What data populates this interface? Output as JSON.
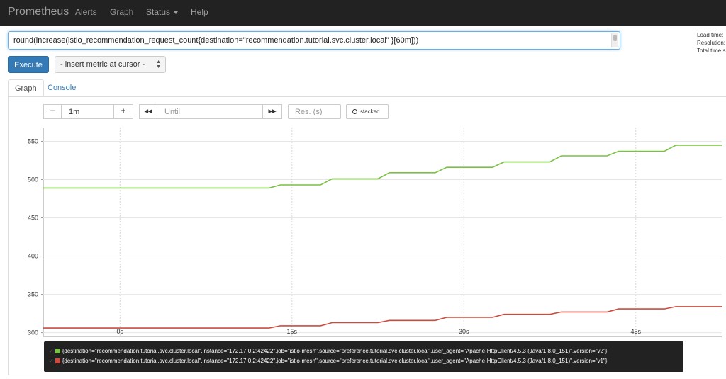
{
  "navbar": {
    "brand": "Prometheus",
    "items": [
      "Alerts",
      "Graph",
      "Status",
      "Help"
    ]
  },
  "expression": {
    "value": "round(increase(istio_recommendation_request_count{destination=\"recommendation.tutorial.svc.cluster.local\" }[60m]))"
  },
  "stats": [
    "Load time:",
    "Resolution:",
    "Total time s"
  ],
  "execute_label": "Execute",
  "metric_select": "- insert metric at cursor -",
  "tabs": [
    "Graph",
    "Console"
  ],
  "controls": {
    "minus": "−",
    "range": "1m",
    "plus": "+",
    "back": "◀◀",
    "until_placeholder": "Until",
    "forward": "▶▶",
    "res_placeholder": "Res. (s)",
    "stacked": "stacked"
  },
  "colors": {
    "navbar": "#222222",
    "execute": "#337ab7",
    "series_v2": "#7ac143",
    "series_v1": "#cb4b3f"
  },
  "chart_data": {
    "type": "line",
    "y_ticks": [
      300,
      350,
      400,
      450,
      500,
      550
    ],
    "x_ticks": [
      "0s",
      "15s",
      "30s",
      "45s"
    ],
    "x_range_seconds": [
      -6.7,
      52.5
    ],
    "ylim": [
      295,
      568
    ],
    "grid": true,
    "series": [
      {
        "name": "{destination=\"recommendation.tutorial.svc.cluster.local\",instance=\"172.17.0.2:42422\",job=\"istio-mesh\",source=\"preference.tutorial.svc.cluster.local\",user_agent=\"Apache-HttpClient/4.5.3 (Java/1.8.0_151)\",version=\"v2\"}",
        "color": "#7ac143",
        "points": [
          [
            -6.7,
            489
          ],
          [
            13,
            489
          ],
          [
            14,
            493
          ],
          [
            17.5,
            493
          ],
          [
            18.5,
            501
          ],
          [
            22.5,
            501
          ],
          [
            23.5,
            509
          ],
          [
            27.5,
            509
          ],
          [
            28.5,
            516
          ],
          [
            32.5,
            516
          ],
          [
            33.5,
            523
          ],
          [
            37.5,
            523
          ],
          [
            38.5,
            531
          ],
          [
            42.5,
            531
          ],
          [
            43.5,
            537
          ],
          [
            47.5,
            537
          ],
          [
            48.5,
            545
          ],
          [
            52.5,
            545
          ]
        ]
      },
      {
        "name": "{destination=\"recommendation.tutorial.svc.cluster.local\",instance=\"172.17.0.2:42422\",job=\"istio-mesh\",source=\"preference.tutorial.svc.cluster.local\",user_agent=\"Apache-HttpClient/4.5.3 (Java/1.8.0_151)\",version=\"v1\"}",
        "color": "#cb4b3f",
        "points": [
          [
            -6.7,
            306
          ],
          [
            13,
            306
          ],
          [
            14,
            309
          ],
          [
            17.5,
            309
          ],
          [
            18.5,
            313
          ],
          [
            22.5,
            313
          ],
          [
            23.5,
            316
          ],
          [
            27.5,
            316
          ],
          [
            28.5,
            320
          ],
          [
            32.5,
            320
          ],
          [
            33.5,
            324
          ],
          [
            37.5,
            324
          ],
          [
            38.5,
            327
          ],
          [
            42.5,
            327
          ],
          [
            43.5,
            331
          ],
          [
            47.5,
            331
          ],
          [
            48.5,
            334
          ],
          [
            52.5,
            334
          ]
        ]
      }
    ]
  }
}
